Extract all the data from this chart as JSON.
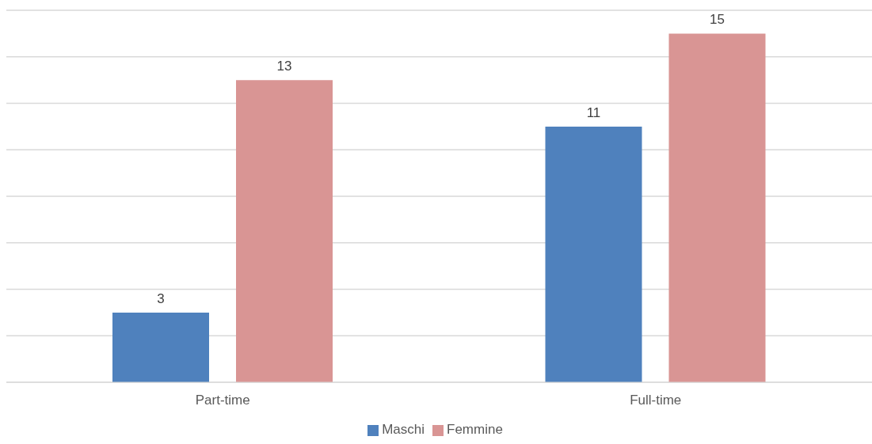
{
  "chart_data": {
    "type": "bar",
    "categories": [
      "Part-time",
      "Full-time"
    ],
    "series": [
      {
        "name": "Maschi",
        "color": "#4f81bd",
        "values": [
          3,
          11
        ]
      },
      {
        "name": "Femmine",
        "color": "#d99594",
        "values": [
          13,
          15
        ]
      }
    ],
    "ylim": [
      0,
      16
    ],
    "yticks": [
      {
        "value": 0,
        "label": null
      },
      {
        "value": 2,
        "label": null
      },
      {
        "value": 4,
        "label": null
      },
      {
        "value": 6,
        "label": null
      },
      {
        "value": 8,
        "label": null
      },
      {
        "value": 10,
        "label": null
      },
      {
        "value": 12,
        "label": null
      },
      {
        "value": 14,
        "label": null
      },
      {
        "value": 16,
        "label": null
      }
    ],
    "grid": "y",
    "tick_labels": "x",
    "data_labels": true,
    "legend": "bottom"
  }
}
